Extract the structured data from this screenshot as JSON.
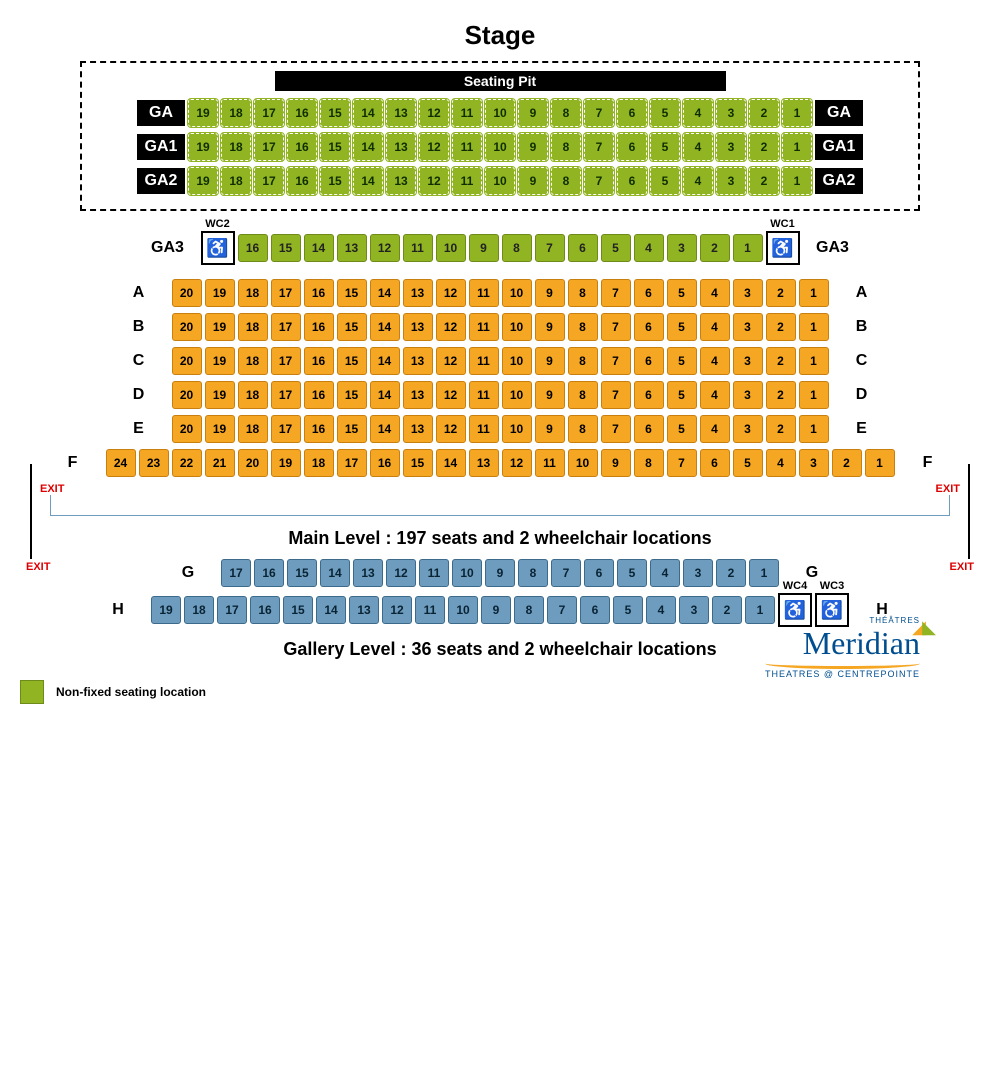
{
  "title": "Stage",
  "seating_pit_label": "Seating Pit",
  "pit_rows": [
    {
      "label": "GA",
      "seats": [
        19,
        18,
        17,
        16,
        15,
        14,
        13,
        12,
        11,
        10,
        9,
        8,
        7,
        6,
        5,
        4,
        3,
        2,
        1
      ]
    },
    {
      "label": "GA1",
      "seats": [
        19,
        18,
        17,
        16,
        15,
        14,
        13,
        12,
        11,
        10,
        9,
        8,
        7,
        6,
        5,
        4,
        3,
        2,
        1
      ]
    },
    {
      "label": "GA2",
      "seats": [
        19,
        18,
        17,
        16,
        15,
        14,
        13,
        12,
        11,
        10,
        9,
        8,
        7,
        6,
        5,
        4,
        3,
        2,
        1
      ]
    }
  ],
  "ga3": {
    "label": "GA3",
    "wc_left": "WC2",
    "wc_right": "WC1",
    "seats": [
      16,
      15,
      14,
      13,
      12,
      11,
      10,
      9,
      8,
      7,
      6,
      5,
      4,
      3,
      2,
      1
    ]
  },
  "main_rows": [
    {
      "label": "A",
      "seats": [
        20,
        19,
        18,
        17,
        16,
        15,
        14,
        13,
        12,
        11,
        10,
        9,
        8,
        7,
        6,
        5,
        4,
        3,
        2,
        1
      ]
    },
    {
      "label": "B",
      "seats": [
        20,
        19,
        18,
        17,
        16,
        15,
        14,
        13,
        12,
        11,
        10,
        9,
        8,
        7,
        6,
        5,
        4,
        3,
        2,
        1
      ]
    },
    {
      "label": "C",
      "seats": [
        20,
        19,
        18,
        17,
        16,
        15,
        14,
        13,
        12,
        11,
        10,
        9,
        8,
        7,
        6,
        5,
        4,
        3,
        2,
        1
      ]
    },
    {
      "label": "D",
      "seats": [
        20,
        19,
        18,
        17,
        16,
        15,
        14,
        13,
        12,
        11,
        10,
        9,
        8,
        7,
        6,
        5,
        4,
        3,
        2,
        1
      ]
    },
    {
      "label": "E",
      "seats": [
        20,
        19,
        18,
        17,
        16,
        15,
        14,
        13,
        12,
        11,
        10,
        9,
        8,
        7,
        6,
        5,
        4,
        3,
        2,
        1
      ]
    },
    {
      "label": "F",
      "seats": [
        24,
        23,
        22,
        21,
        20,
        19,
        18,
        17,
        16,
        15,
        14,
        13,
        12,
        11,
        10,
        9,
        8,
        7,
        6,
        5,
        4,
        3,
        2,
        1
      ]
    }
  ],
  "exit_label": "EXIT",
  "main_level_text": "Main Level : 197 seats and 2 wheelchair locations",
  "gallery_rows": [
    {
      "label": "G",
      "seats": [
        17,
        16,
        15,
        14,
        13,
        12,
        11,
        10,
        9,
        8,
        7,
        6,
        5,
        4,
        3,
        2,
        1
      ],
      "wc": null
    },
    {
      "label": "H",
      "seats": [
        19,
        18,
        17,
        16,
        15,
        14,
        13,
        12,
        11,
        10,
        9,
        8,
        7,
        6,
        5,
        4,
        3,
        2,
        1
      ],
      "wc": [
        "WC4",
        "WC3"
      ]
    }
  ],
  "gallery_level_text": "Gallery Level : 36 seats and 2 wheelchair locations",
  "legend_text": "Non-fixed seating location",
  "logo": {
    "top": "THÉÂTRES",
    "main": "Meridian",
    "sub": "THEATRES @ CENTREPOINTE"
  },
  "colors": {
    "green": "#91b422",
    "orange": "#f5a623",
    "blue": "#6d9cbf",
    "black": "#000000",
    "red": "#d00000",
    "logo_blue": "#004e8f"
  }
}
